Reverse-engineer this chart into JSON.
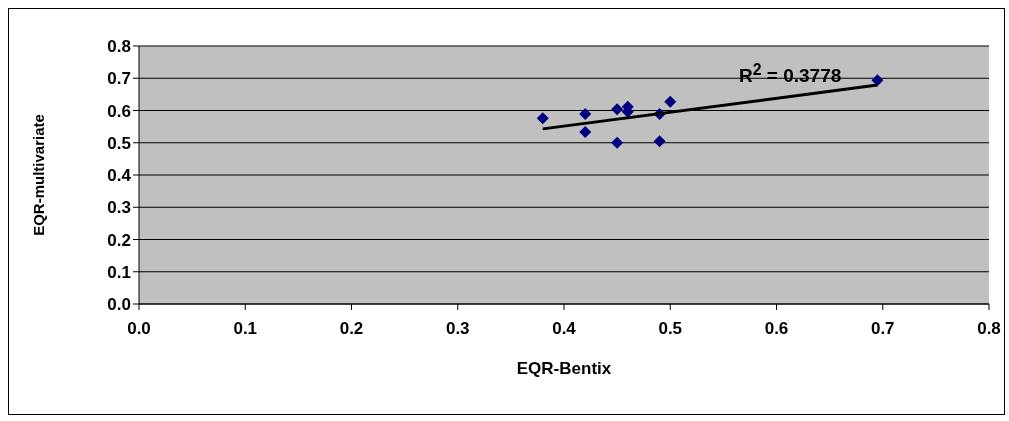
{
  "chart_data": {
    "type": "scatter",
    "xlabel": "EQR-Bentix",
    "ylabel": "EQR-multivariate",
    "xlim": [
      0,
      0.8
    ],
    "xticks": [
      {
        "value": 0,
        "label": "0.0"
      },
      {
        "value": 0.1,
        "label": "0.1"
      },
      {
        "value": 0.2,
        "label": "0.2"
      },
      {
        "value": 0.3,
        "label": "0.3"
      },
      {
        "value": 0.4,
        "label": "0.4"
      },
      {
        "value": 0.5,
        "label": "0.5"
      },
      {
        "value": 0.6,
        "label": "0.6"
      },
      {
        "value": 0.7,
        "label": "0.7"
      },
      {
        "value": 0.8,
        "label": "0.8"
      }
    ],
    "ylim": [
      0,
      0.8
    ],
    "yticks": [
      {
        "value": 0,
        "label": "0.0"
      },
      {
        "value": 0.1,
        "label": "0.1"
      },
      {
        "value": 0.2,
        "label": "0.2"
      },
      {
        "value": 0.3,
        "label": "0.3"
      },
      {
        "value": 0.4,
        "label": "0.4"
      },
      {
        "value": 0.5,
        "label": "0.5"
      },
      {
        "value": 0.6,
        "label": "0.6"
      },
      {
        "value": 0.7,
        "label": "0.7"
      },
      {
        "value": 0.8,
        "label": "0.8"
      }
    ],
    "grid": "y",
    "series": [
      {
        "marker": "diamond",
        "color": "#000080",
        "x": [
          0.38,
          0.42,
          0.42,
          0.45,
          0.45,
          0.46,
          0.46,
          0.49,
          0.49,
          0.5,
          0.695
        ],
        "values": [
          0.576,
          0.589,
          0.533,
          0.604,
          0.5,
          0.612,
          0.596,
          0.589,
          0.505,
          0.627,
          0.694
        ]
      },
      {
        "type": "line",
        "marker": "none",
        "color": "#000000",
        "x": [
          0.38,
          0.695
        ],
        "values": [
          0.543,
          0.679
        ]
      }
    ],
    "annotations": [
      "R$^{2}$ = 0.3778"
    ]
  }
}
